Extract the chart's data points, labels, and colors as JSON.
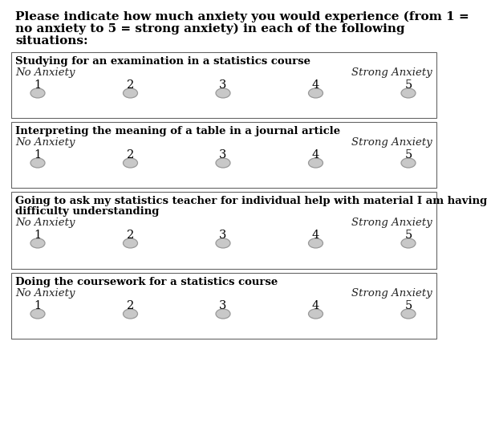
{
  "header_lines": [
    "Please indicate how much anxiety you would experience (from 1 =",
    "no anxiety to 5 = strong anxiety) in each of the following",
    "situations:"
  ],
  "items": [
    [
      "Studying for an examination in a statistics course"
    ],
    [
      "Interpreting the meaning of a table in a journal article"
    ],
    [
      "Going to ask my statistics teacher for individual help with material I am having",
      "difficulty understanding"
    ],
    [
      "Doing the coursework for a statistics course"
    ]
  ],
  "scale_labels": [
    "No Anxiety",
    "Strong Anxiety"
  ],
  "scale_numbers": [
    "1",
    "2",
    "3",
    "4",
    "5"
  ],
  "bg_color": "#ffffff",
  "box_color": "#ffffff",
  "border_color": "#666666",
  "header_color": "#000000",
  "item_title_color": "#000000",
  "scale_label_color": "#222222",
  "number_color": "#000000",
  "circle_face_color": "#c8c8c8",
  "circle_edge_color": "#999999",
  "header_fontsize": 11.0,
  "item_title_fontsize": 9.5,
  "scale_label_fontsize": 9.5,
  "number_fontsize": 10.5
}
